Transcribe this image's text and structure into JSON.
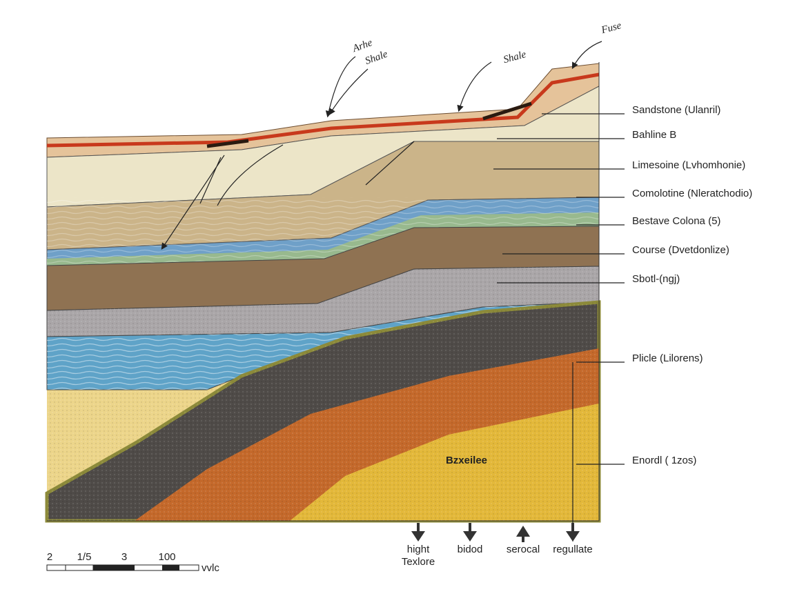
{
  "annotations": [
    "Arhe",
    "Shale",
    "Shale",
    "Fuse"
  ],
  "layer_labels": [
    "Sandstone (Ulanril)",
    "Bahline B",
    "Limesoine (Lvhomhonie)",
    "Comolotine (Nleratchodio)",
    "Bestave Colona (5)",
    "Course (Dvetdonlize)",
    "Sbotl-(ngj)",
    "Plicle (Lilorens)",
    "Enordl ( 1zos)"
  ],
  "center_label": "Bzxeilee",
  "bottom_labels": [
    [
      "hight",
      "Texlore"
    ],
    [
      "bidod"
    ],
    [
      "serocal"
    ],
    [
      "regullate"
    ]
  ],
  "scale": {
    "ticks": [
      "2",
      "1/5",
      "3",
      "100"
    ],
    "unit": "vvlc"
  }
}
